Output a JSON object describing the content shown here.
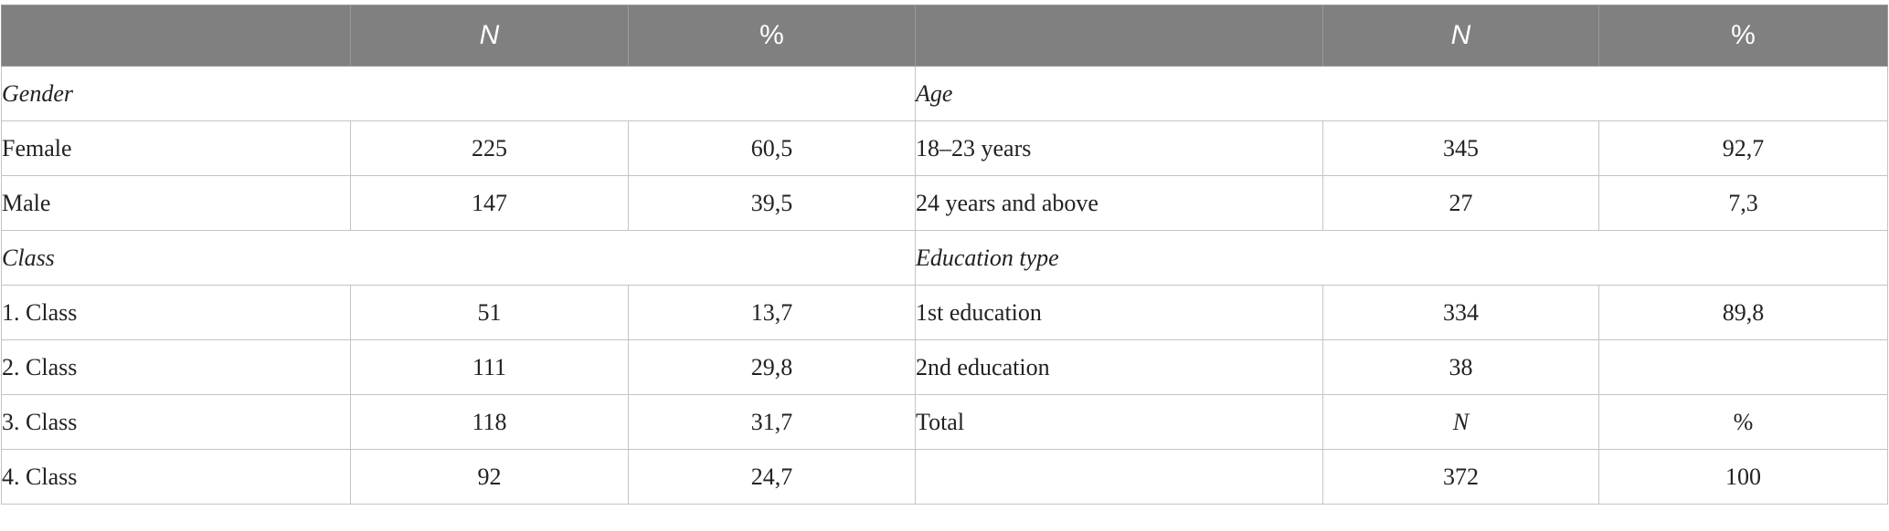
{
  "header": {
    "blank_left": "",
    "n_left": "N",
    "pct_left": "%",
    "blank_right": "",
    "n_right": "N",
    "pct_right": "%"
  },
  "sections": {
    "gender": "Gender",
    "age": "Age",
    "class": "Class",
    "education_type": "Education type"
  },
  "rows": [
    {
      "l_label": "Female",
      "l_n": "225",
      "l_pct": "60,5",
      "r_label": "18–23 years",
      "r_n": "345",
      "r_pct": "92,7"
    },
    {
      "l_label": "Male",
      "l_n": "147",
      "l_pct": "39,5",
      "r_label": "24 years and above",
      "r_n": "27",
      "r_pct": "7,3"
    },
    {
      "l_label": "1. Class",
      "l_n": "51",
      "l_pct": "13,7",
      "r_label": "1st education",
      "r_n": "334",
      "r_pct": "89,8"
    },
    {
      "l_label": "2. Class",
      "l_n": "111",
      "l_pct": "29,8",
      "r_label": "2nd education",
      "r_n": "38",
      "r_pct": ""
    },
    {
      "l_label": "3. Class",
      "l_n": "118",
      "l_pct": "31,7",
      "r_label": "Total",
      "r_n": "N",
      "r_pct": "%"
    },
    {
      "l_label": "4. Class",
      "l_n": "92",
      "l_pct": "24,7",
      "r_label": "",
      "r_n": "372",
      "r_pct": "100"
    }
  ]
}
